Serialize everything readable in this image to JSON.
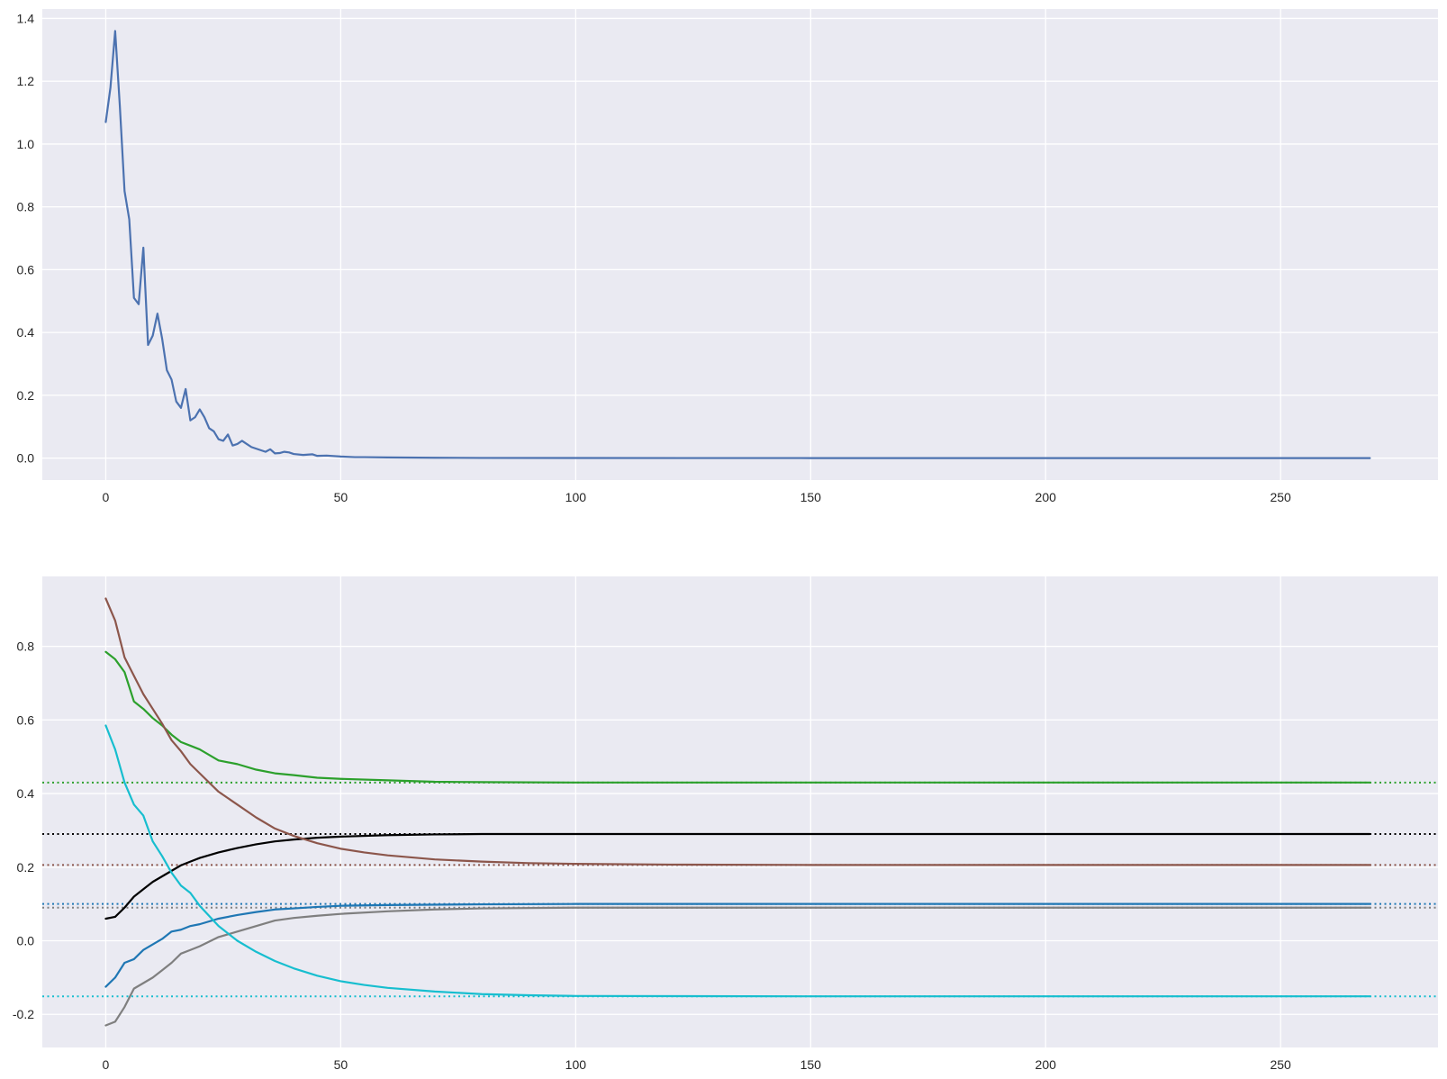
{
  "chart_data": [
    {
      "type": "line",
      "title": "",
      "xlabel": "",
      "ylabel": "",
      "xlim": [
        -13.5,
        283.5
      ],
      "ylim": [
        -0.07,
        1.43
      ],
      "grid": true,
      "x_ticks": [
        0,
        50,
        100,
        150,
        200,
        250
      ],
      "y_ticks": [
        0.0,
        0.2,
        0.4,
        0.6,
        0.8,
        1.0,
        1.2,
        1.4
      ],
      "x_tick_labels": [
        "0",
        "50",
        "100",
        "150",
        "200",
        "250"
      ],
      "y_tick_labels": [
        "0.0",
        "0.2",
        "0.4",
        "0.6",
        "0.8",
        "1.0",
        "1.2",
        "1.4"
      ],
      "series": [
        {
          "color": "#4c72b0",
          "points": [
            [
              0,
              1.07
            ],
            [
              1,
              1.18
            ],
            [
              2,
              1.36
            ],
            [
              3,
              1.12
            ],
            [
              4,
              0.85
            ],
            [
              5,
              0.76
            ],
            [
              6,
              0.51
            ],
            [
              7,
              0.49
            ],
            [
              8,
              0.67
            ],
            [
              9,
              0.36
            ],
            [
              10,
              0.39
            ],
            [
              11,
              0.46
            ],
            [
              12,
              0.38
            ],
            [
              13,
              0.28
            ],
            [
              14,
              0.25
            ],
            [
              15,
              0.18
            ],
            [
              16,
              0.16
            ],
            [
              17,
              0.22
            ],
            [
              18,
              0.12
            ],
            [
              19,
              0.13
            ],
            [
              20,
              0.155
            ],
            [
              21,
              0.13
            ],
            [
              22,
              0.095
            ],
            [
              23,
              0.085
            ],
            [
              24,
              0.06
            ],
            [
              25,
              0.055
            ],
            [
              26,
              0.075
            ],
            [
              27,
              0.04
            ],
            [
              28,
              0.045
            ],
            [
              29,
              0.055
            ],
            [
              30,
              0.045
            ],
            [
              31,
              0.035
            ],
            [
              32,
              0.03
            ],
            [
              33,
              0.025
            ],
            [
              34,
              0.02
            ],
            [
              35,
              0.028
            ],
            [
              36,
              0.015
            ],
            [
              37,
              0.016
            ],
            [
              38,
              0.02
            ],
            [
              39,
              0.018
            ],
            [
              40,
              0.013
            ],
            [
              42,
              0.01
            ],
            [
              44,
              0.012
            ],
            [
              45,
              0.007
            ],
            [
              47,
              0.008
            ],
            [
              50,
              0.005
            ],
            [
              53,
              0.003
            ],
            [
              55,
              0.003
            ],
            [
              60,
              0.002
            ],
            [
              70,
              0.001
            ],
            [
              80,
              0.0005
            ],
            [
              100,
              0.0002
            ],
            [
              150,
              0.0
            ],
            [
              200,
              0.0
            ],
            [
              269,
              0.0
            ]
          ]
        }
      ]
    },
    {
      "type": "line",
      "title": "",
      "xlabel": "",
      "ylabel": "",
      "xlim": [
        -13.5,
        283.5
      ],
      "ylim": [
        -0.29,
        0.99
      ],
      "grid": true,
      "x_ticks": [
        0,
        50,
        100,
        150,
        200,
        250
      ],
      "y_ticks": [
        -0.2,
        0.0,
        0.2,
        0.4,
        0.6,
        0.8
      ],
      "x_tick_labels": [
        "0",
        "50",
        "100",
        "150",
        "200",
        "250"
      ],
      "y_tick_labels": [
        "-0.2",
        "0.0",
        "0.2",
        "0.4",
        "0.6",
        "0.8"
      ],
      "x_end": 269,
      "series": [
        {
          "color": "#2ca02c",
          "points": [
            [
              0,
              0.785
            ],
            [
              2,
              0.765
            ],
            [
              4,
              0.73
            ],
            [
              6,
              0.65
            ],
            [
              8,
              0.63
            ],
            [
              10,
              0.605
            ],
            [
              12,
              0.585
            ],
            [
              14,
              0.56
            ],
            [
              16,
              0.54
            ],
            [
              18,
              0.53
            ],
            [
              20,
              0.52
            ],
            [
              24,
              0.49
            ],
            [
              28,
              0.48
            ],
            [
              32,
              0.465
            ],
            [
              36,
              0.455
            ],
            [
              40,
              0.45
            ],
            [
              45,
              0.443
            ],
            [
              50,
              0.44
            ],
            [
              60,
              0.436
            ],
            [
              70,
              0.432
            ],
            [
              80,
              0.431
            ],
            [
              100,
              0.43
            ],
            [
              150,
              0.43
            ],
            [
              200,
              0.43
            ],
            [
              269,
              0.43
            ]
          ],
          "target": 0.43
        },
        {
          "color": "#000000",
          "points": [
            [
              0,
              0.06
            ],
            [
              2,
              0.065
            ],
            [
              4,
              0.09
            ],
            [
              6,
              0.12
            ],
            [
              8,
              0.14
            ],
            [
              10,
              0.16
            ],
            [
              12,
              0.175
            ],
            [
              14,
              0.19
            ],
            [
              16,
              0.205
            ],
            [
              18,
              0.215
            ],
            [
              20,
              0.225
            ],
            [
              24,
              0.24
            ],
            [
              28,
              0.252
            ],
            [
              32,
              0.262
            ],
            [
              36,
              0.27
            ],
            [
              40,
              0.275
            ],
            [
              45,
              0.28
            ],
            [
              50,
              0.283
            ],
            [
              60,
              0.287
            ],
            [
              70,
              0.289
            ],
            [
              80,
              0.29
            ],
            [
              100,
              0.29
            ],
            [
              150,
              0.29
            ],
            [
              200,
              0.29
            ],
            [
              269,
              0.29
            ]
          ],
          "target": 0.29
        },
        {
          "color": "#8c564b",
          "points": [
            [
              0,
              0.93
            ],
            [
              2,
              0.87
            ],
            [
              4,
              0.77
            ],
            [
              6,
              0.72
            ],
            [
              8,
              0.67
            ],
            [
              10,
              0.63
            ],
            [
              12,
              0.59
            ],
            [
              14,
              0.545
            ],
            [
              16,
              0.515
            ],
            [
              18,
              0.48
            ],
            [
              20,
              0.455
            ],
            [
              24,
              0.405
            ],
            [
              28,
              0.37
            ],
            [
              32,
              0.335
            ],
            [
              36,
              0.305
            ],
            [
              40,
              0.285
            ],
            [
              45,
              0.265
            ],
            [
              50,
              0.25
            ],
            [
              55,
              0.24
            ],
            [
              60,
              0.232
            ],
            [
              70,
              0.221
            ],
            [
              80,
              0.215
            ],
            [
              90,
              0.211
            ],
            [
              100,
              0.209
            ],
            [
              120,
              0.207
            ],
            [
              150,
              0.206
            ],
            [
              200,
              0.206
            ],
            [
              269,
              0.206
            ]
          ],
          "target": 0.206
        },
        {
          "color": "#1f77b4",
          "points": [
            [
              0,
              -0.125
            ],
            [
              2,
              -0.1
            ],
            [
              4,
              -0.06
            ],
            [
              6,
              -0.05
            ],
            [
              8,
              -0.025
            ],
            [
              10,
              -0.01
            ],
            [
              12,
              0.005
            ],
            [
              14,
              0.025
            ],
            [
              16,
              0.03
            ],
            [
              18,
              0.04
            ],
            [
              20,
              0.045
            ],
            [
              24,
              0.06
            ],
            [
              28,
              0.07
            ],
            [
              32,
              0.078
            ],
            [
              36,
              0.085
            ],
            [
              40,
              0.088
            ],
            [
              45,
              0.092
            ],
            [
              50,
              0.095
            ],
            [
              60,
              0.097
            ],
            [
              80,
              0.099
            ],
            [
              100,
              0.1
            ],
            [
              150,
              0.1
            ],
            [
              200,
              0.1
            ],
            [
              269,
              0.1
            ]
          ],
          "target": 0.1
        },
        {
          "color": "#7f7f7f",
          "points": [
            [
              0,
              -0.23
            ],
            [
              2,
              -0.22
            ],
            [
              4,
              -0.18
            ],
            [
              6,
              -0.13
            ],
            [
              8,
              -0.115
            ],
            [
              10,
              -0.1
            ],
            [
              12,
              -0.08
            ],
            [
              14,
              -0.06
            ],
            [
              16,
              -0.035
            ],
            [
              18,
              -0.025
            ],
            [
              20,
              -0.015
            ],
            [
              24,
              0.01
            ],
            [
              28,
              0.025
            ],
            [
              32,
              0.04
            ],
            [
              36,
              0.055
            ],
            [
              40,
              0.062
            ],
            [
              45,
              0.068
            ],
            [
              50,
              0.073
            ],
            [
              60,
              0.08
            ],
            [
              70,
              0.085
            ],
            [
              80,
              0.088
            ],
            [
              100,
              0.09
            ],
            [
              150,
              0.09
            ],
            [
              200,
              0.09
            ],
            [
              269,
              0.09
            ]
          ],
          "target": 0.09
        },
        {
          "color": "#17becf",
          "points": [
            [
              0,
              0.585
            ],
            [
              2,
              0.52
            ],
            [
              4,
              0.43
            ],
            [
              6,
              0.37
            ],
            [
              8,
              0.34
            ],
            [
              10,
              0.27
            ],
            [
              12,
              0.23
            ],
            [
              14,
              0.185
            ],
            [
              16,
              0.15
            ],
            [
              18,
              0.13
            ],
            [
              20,
              0.095
            ],
            [
              24,
              0.04
            ],
            [
              28,
              0.0
            ],
            [
              32,
              -0.03
            ],
            [
              36,
              -0.055
            ],
            [
              40,
              -0.075
            ],
            [
              45,
              -0.095
            ],
            [
              50,
              -0.11
            ],
            [
              55,
              -0.12
            ],
            [
              60,
              -0.128
            ],
            [
              70,
              -0.138
            ],
            [
              80,
              -0.145
            ],
            [
              90,
              -0.148
            ],
            [
              100,
              -0.15
            ],
            [
              150,
              -0.151
            ],
            [
              200,
              -0.151
            ],
            [
              269,
              -0.151
            ]
          ],
          "target": -0.151
        }
      ]
    }
  ]
}
